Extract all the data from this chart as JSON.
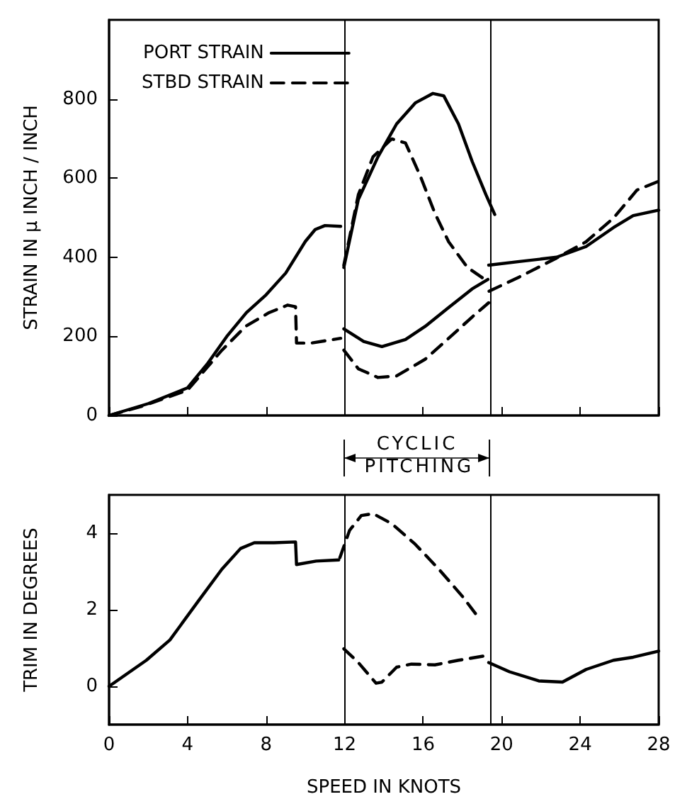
{
  "chart_data": [
    {
      "type": "line",
      "ylabel": "STRAIN IN μ INCH / INCH",
      "xlim": [
        0,
        28
      ],
      "xticks": [
        0,
        4,
        8,
        12,
        16,
        20,
        24,
        28
      ],
      "ylim": [
        0,
        1000
      ],
      "yticks": [
        0,
        200,
        400,
        600,
        800
      ],
      "tick_labels": "y",
      "legend": "top left",
      "grid": false,
      "marker": "none",
      "ref_lines": [
        {
          "axis": "x",
          "value": 12,
          "color": "#000000"
        },
        {
          "axis": "x",
          "value": 19.4,
          "color": "#000000"
        }
      ],
      "series": [
        {
          "name": "PORT STRAIN",
          "color": "#000000",
          "line_style": "solid",
          "x": [
            0,
            2,
            4,
            5,
            6,
            7,
            8,
            9,
            10,
            10.5,
            11,
            11.8
          ],
          "values": [
            0,
            30,
            70,
            130,
            200,
            260,
            305,
            360,
            440,
            470,
            480,
            478
          ]
        },
        {
          "name": "STBD STRAIN",
          "color": "#000000",
          "line_style": "dashed",
          "x": [
            0,
            1.66,
            4,
            5.75,
            6.95,
            8.15,
            9.1,
            9.5,
            9.55,
            10.3,
            11.8
          ],
          "values": [
            0,
            23,
            64,
            165,
            225,
            260,
            279,
            275,
            183,
            183,
            195
          ]
        },
        {
          "color": "#000000",
          "line_style": "solid",
          "x": [
            11.96,
            12.7,
            13.7,
            14.65,
            15.6,
            16.5,
            17.05,
            17.8,
            18.5,
            19.2,
            19.65
          ],
          "values": [
            374,
            546,
            654,
            737,
            790,
            814,
            808,
            737,
            642,
            558,
            508
          ]
        },
        {
          "color": "#000000",
          "line_style": "solid",
          "x": [
            11.96,
            12.97,
            13.9,
            15.1,
            16.1,
            17.3,
            18.5,
            19.3
          ],
          "values": [
            219,
            187,
            174,
            192,
            225,
            273,
            320,
            344
          ]
        },
        {
          "color": "#000000",
          "line_style": "solid",
          "x": [
            19.34,
            20.9,
            22.8,
            24.3,
            25.7,
            26.7,
            28
          ],
          "values": [
            380,
            389,
            400,
            427,
            475,
            505,
            519
          ]
        },
        {
          "color": "#000000",
          "line_style": "dashed",
          "x": [
            11.96,
            12.7,
            13.45,
            14.4,
            15.1,
            15.85,
            16.6,
            17.3,
            18.26,
            19.2
          ],
          "values": [
            380,
            558,
            654,
            699,
            689,
            606,
            511,
            439,
            374,
            342
          ]
        },
        {
          "color": "#000000",
          "line_style": "dashed",
          "x": [
            11.96,
            12.7,
            13.7,
            14.65,
            16.1,
            17.3,
            18.5,
            19.34
          ],
          "values": [
            165,
            118,
            96,
            100,
            142,
            195,
            249,
            285
          ]
        },
        {
          "color": "#000000",
          "line_style": "dashed",
          "x": [
            19.36,
            20.9,
            22.8,
            24.3,
            25.7,
            26.9,
            28
          ],
          "values": [
            314,
            350,
            398,
            439,
            499,
            570,
            592
          ]
        }
      ]
    },
    {
      "type": "line",
      "xlabel": "SPEED IN KNOTS",
      "ylabel": "TRIM IN DEGREES",
      "xlim": [
        0,
        28
      ],
      "xticks": [
        0,
        4,
        8,
        12,
        16,
        20,
        24,
        28
      ],
      "ylim": [
        -1,
        5
      ],
      "yticks": [
        0,
        2,
        4
      ],
      "grid": false,
      "marker": "none",
      "annotations": [
        "CYCLIC PITCHING"
      ],
      "ref_lines": [
        {
          "axis": "x",
          "value": 12,
          "color": "#000000"
        },
        {
          "axis": "x",
          "value": 19.4,
          "color": "#000000"
        }
      ],
      "series": [
        {
          "color": "#000000",
          "line_style": "solid",
          "x": [
            0,
            1.9,
            3.1,
            4.55,
            5.75,
            6.7,
            7.4,
            8.4,
            9.5,
            9.55,
            10.55,
            11.7
          ],
          "values": [
            0,
            0.68,
            1.21,
            2.23,
            3.06,
            3.6,
            3.75,
            3.75,
            3.77,
            3.18,
            3.27,
            3.3
          ]
        },
        {
          "color": "#000000",
          "line_style": "solid",
          "x": [
            19.34,
            20.4,
            21.9,
            23.1,
            24.3,
            25.7,
            26.7,
            28
          ],
          "values": [
            0.62,
            0.38,
            0.14,
            0.11,
            0.44,
            0.68,
            0.76,
            0.92
          ]
        },
        {
          "color": "#000000",
          "line_style": "dashed",
          "x": [
            11.76,
            12.25,
            12.85,
            13.45,
            14.4,
            15.6,
            16.8,
            18,
            18.86
          ],
          "values": [
            3.36,
            4.07,
            4.46,
            4.51,
            4.25,
            3.71,
            3.06,
            2.35,
            1.77
          ]
        },
        {
          "color": "#000000",
          "line_style": "dashed",
          "x": [
            11.96,
            12.7,
            13.6,
            13.9,
            14.65,
            15.4,
            16.6,
            17.8,
            19.2
          ],
          "values": [
            0.98,
            0.62,
            0.08,
            0.11,
            0.5,
            0.58,
            0.56,
            0.68,
            0.8
          ]
        }
      ]
    }
  ]
}
